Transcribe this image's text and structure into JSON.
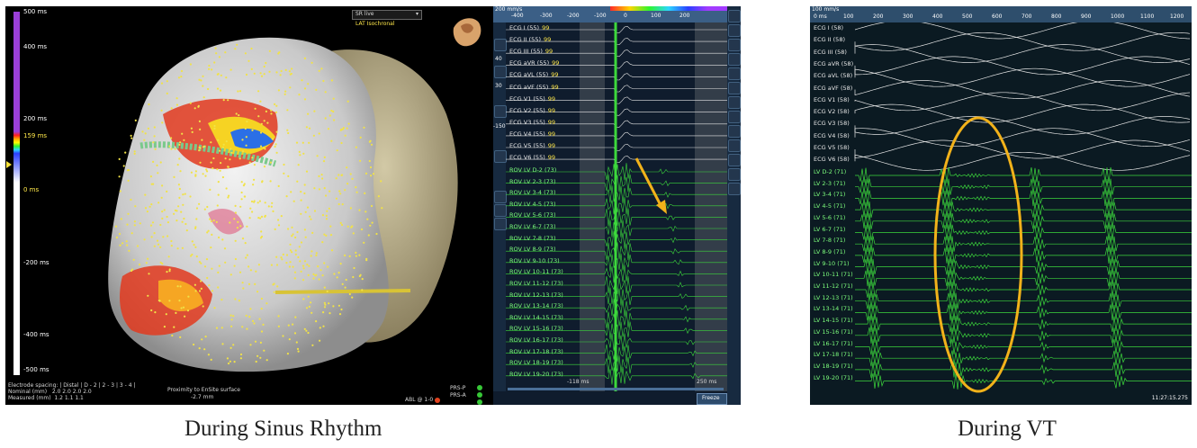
{
  "left": {
    "scale": {
      "ticks": [
        "500 ms",
        "400 ms",
        "200 ms",
        "159 ms",
        "0 ms",
        "-200 ms",
        "-400 ms",
        "-500 ms"
      ]
    },
    "map_select": {
      "value": "SR live",
      "sub": "LAT Isochronal"
    },
    "footer": {
      "spacing_label": "Electrode spacing:",
      "spacing_cols": "| Distal | D - 2 | 2 - 3 | 3 - 4 |",
      "nominal_label": "Nominal (mm)",
      "nominal_vals": "2.0   2.0   2.0   2.0",
      "measured_label": "Measured (mm)",
      "measured_vals": "1.2   1.1   1.1",
      "proximity_label": "Proximity to EnSite surface",
      "proximity_val": "-2.7 mm",
      "abl_label": "ABL @ 1-0",
      "prs_p": "PRS-P",
      "prs_a": "PRS-A"
    },
    "icons": {
      "arrow": "arrow-icon",
      "cube": "heart-orientation-icon"
    }
  },
  "mid": {
    "speed": "200 mm/s",
    "time_ticks": [
      "-400",
      "-300",
      "-200",
      "-100",
      "0",
      "100",
      "200"
    ],
    "ecg_channels": [
      "ECG I (55)",
      "ECG II (55)",
      "ECG III (55)",
      "ECG aVR (55)",
      "ECG aVL (55)",
      "ECG aVF (55)",
      "ECG V1 (55)",
      "ECG V2 (55)",
      "ECG V3 (55)",
      "ECG V4 (55)",
      "ECG V5 (55)",
      "ECG V6 (55)"
    ],
    "rov_channels": [
      "ROV LV   D-2 (73)",
      "ROV LV   2-3 (73)",
      "ROV LV   3-4 (73)",
      "ROV LV   4-5 (73)",
      "ROV LV   5-6 (73)",
      "ROV LV   6-7 (73)",
      "ROV LV   7-8 (73)",
      "ROV LV   8-9 (73)",
      "ROV LV   9-10 (73)",
      "ROV LV   10-11 (73)",
      "ROV LV   11-12 (73)",
      "ROV LV   12-13 (73)",
      "ROV LV   13-14 (73)",
      "ROV LV   14-15 (73)",
      "ROV LV   15-16 (73)",
      "ROV LV   16-17 (73)",
      "ROV LV   17-18 (73)",
      "ROV LV   18-19 (73)",
      "ROV LV   19-20 (73)"
    ],
    "gain_vals": [
      "40",
      "30",
      "-150"
    ],
    "window_left": "-118 ms",
    "window_right": "250 ms",
    "freeze_label": "Freeze",
    "val_tag": "99"
  },
  "right": {
    "speed": "100 mm/s",
    "time_ticks": [
      "0 ms",
      "100",
      "200",
      "300",
      "400",
      "500",
      "600",
      "700",
      "800",
      "900",
      "1000",
      "1100",
      "1200"
    ],
    "ecg_channels": [
      "ECG I (58)",
      "ECG II (58)",
      "ECG III (58)",
      "ECG aVR (58)",
      "ECG aVL (58)",
      "ECG aVF (58)",
      "ECG V1 (58)",
      "ECG V2 (58)",
      "ECG V3 (58)",
      "ECG V4 (58)",
      "ECG V5 (58)",
      "ECG V6 (58)"
    ],
    "lv_channels": [
      "LV   D-2 (71)",
      "LV   2-3 (71)",
      "LV   3-4 (71)",
      "LV   4-5 (71)",
      "LV   5-6 (71)",
      "LV   6-7 (71)",
      "LV   7-8 (71)",
      "LV   8-9 (71)",
      "LV   9-10 (71)",
      "LV   10-11 (71)",
      "LV   11-12 (71)",
      "LV   12-13 (71)",
      "LV   13-14 (71)",
      "LV   14-15 (71)",
      "LV   15-16 (71)",
      "LV   16-17 (71)",
      "LV   17-18 (71)",
      "LV   18-19 (71)",
      "LV   19-20 (71)"
    ],
    "clock": "11:27:15.275"
  },
  "captions": {
    "left": "During Sinus Rhythm",
    "right": "During VT"
  },
  "colors": {
    "ecg": "#e6e6e6",
    "egm": "#3cd83c",
    "annotation": "#f2b21a",
    "scale_top": "#9b3fd8"
  }
}
